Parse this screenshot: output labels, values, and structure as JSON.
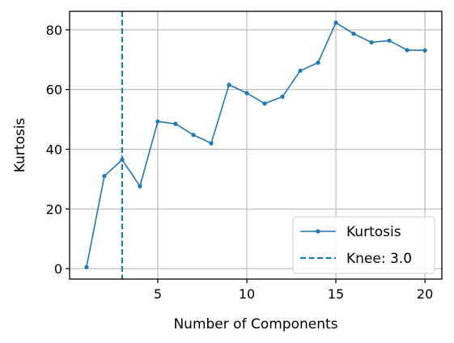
{
  "chart_data": {
    "type": "line",
    "title": "",
    "xlabel": "Number of Components",
    "ylabel": "Kurtosis",
    "xlim": [
      0.05,
      20.95
    ],
    "ylim": [
      -3.5,
      86.2
    ],
    "xticks": [
      5,
      10,
      15,
      20
    ],
    "yticks": [
      0,
      20,
      40,
      60,
      80
    ],
    "grid": true,
    "legend_position": "bottom-right",
    "series": [
      {
        "name": "Kurtosis",
        "color": "#1f77b4",
        "marker": "circle",
        "x": [
          1,
          2,
          3,
          4,
          5,
          6,
          7,
          8,
          9,
          10,
          11,
          12,
          13,
          14,
          15,
          16,
          17,
          18,
          19,
          20
        ],
        "y": [
          0.5,
          31.0,
          36.5,
          27.6,
          49.3,
          48.5,
          44.8,
          42.0,
          61.6,
          58.8,
          55.3,
          57.6,
          66.3,
          69.0,
          82.4,
          78.7,
          75.8,
          76.4,
          73.2,
          73.1
        ]
      }
    ],
    "vlines": [
      {
        "name": "Knee: 3.0",
        "x": 3,
        "color": "#1f77b4",
        "style": "dashed"
      }
    ]
  }
}
